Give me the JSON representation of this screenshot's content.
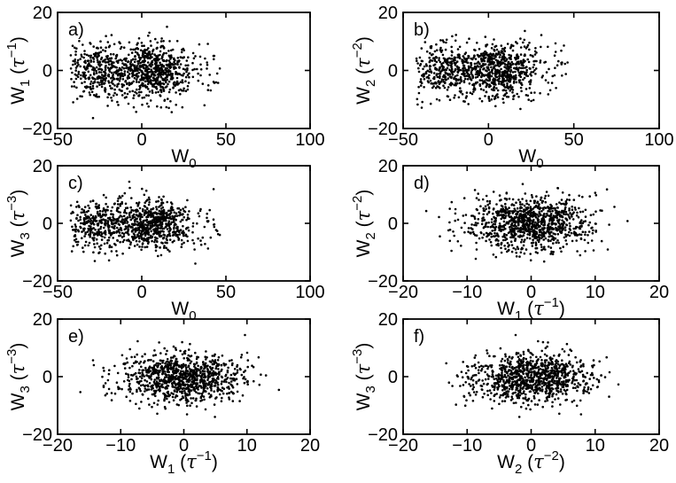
{
  "figure": {
    "background": "#ffffff",
    "axes_color": "#000000",
    "panel_letters": [
      "a)",
      "b)",
      "c)",
      "d)",
      "e)",
      "f)"
    ]
  },
  "chart_data": {
    "type": "scatter",
    "grid": false,
    "legend": null,
    "marker": {
      "style": "point",
      "color": "#000000",
      "radius_px": 1.3
    },
    "frame_color": "#000000",
    "background": "#ffffff",
    "n_points": 1000,
    "seed": 20,
    "variables": {
      "W0": {
        "dist": "mixture",
        "components": [
          {
            "weight": 0.34,
            "mean": -26,
            "std": 9.5
          },
          {
            "weight": 0.63,
            "mean": 7,
            "std": 11
          },
          {
            "weight": 0.03,
            "mean": 36,
            "std": 8
          }
        ],
        "clip": [
          -43,
          51
        ]
      },
      "W1": {
        "dist": "normal",
        "mean": -0.3,
        "std": 4.8,
        "clip": [
          -17,
          15.2
        ]
      },
      "W2": {
        "dist": "normal",
        "mean": 0.0,
        "std": 4.6,
        "clip": [
          -17.5,
          15
        ]
      },
      "W3": {
        "dist": "normal",
        "mean": -0.4,
        "std": 4.2,
        "clip": [
          -18,
          14.5
        ]
      }
    },
    "panels": [
      {
        "label": "a)",
        "x": "W0",
        "y": "W1",
        "xlim": [
          -50,
          100
        ],
        "ylim": [
          -20,
          20
        ],
        "xticks": [
          -50,
          0,
          50,
          100
        ],
        "yticks": [
          -20,
          0,
          20
        ],
        "xlabel": {
          "base": "W",
          "sub": "0"
        },
        "ylabel": {
          "base": "W",
          "sub": "1",
          "tau_exp": "−1"
        }
      },
      {
        "label": "b)",
        "x": "W0",
        "y": "W2",
        "xlim": [
          -50,
          100
        ],
        "ylim": [
          -20,
          20
        ],
        "xticks": [
          -50,
          0,
          50,
          100
        ],
        "yticks": [
          -20,
          0,
          20
        ],
        "xlabel": {
          "base": "W",
          "sub": "0"
        },
        "ylabel": {
          "base": "W",
          "sub": "2",
          "tau_exp": "−2"
        }
      },
      {
        "label": "c)",
        "x": "W0",
        "y": "W3",
        "xlim": [
          -50,
          100
        ],
        "ylim": [
          -20,
          20
        ],
        "xticks": [
          -50,
          0,
          50,
          100
        ],
        "yticks": [
          -20,
          0,
          20
        ],
        "xlabel": {
          "base": "W",
          "sub": "0"
        },
        "ylabel": {
          "base": "W",
          "sub": "3",
          "tau_exp": "−3"
        }
      },
      {
        "label": "d)",
        "x": "W1",
        "y": "W2",
        "xlim": [
          -20,
          20
        ],
        "ylim": [
          -20,
          20
        ],
        "xticks": [
          -20,
          -10,
          0,
          10,
          20
        ],
        "yticks": [
          -20,
          0,
          20
        ],
        "xlabel": {
          "base": "W",
          "sub": "1",
          "tau_exp": "−1"
        },
        "ylabel": {
          "base": "W",
          "sub": "2",
          "tau_exp": "−2"
        }
      },
      {
        "label": "e)",
        "x": "W1",
        "y": "W3",
        "xlim": [
          -20,
          20
        ],
        "ylim": [
          -20,
          20
        ],
        "xticks": [
          -20,
          -10,
          0,
          10,
          20
        ],
        "yticks": [
          -20,
          0,
          20
        ],
        "xlabel": {
          "base": "W",
          "sub": "1",
          "tau_exp": "−1"
        },
        "ylabel": {
          "base": "W",
          "sub": "3",
          "tau_exp": "−3"
        }
      },
      {
        "label": "f)",
        "x": "W2",
        "y": "W3",
        "xlim": [
          -20,
          20
        ],
        "ylim": [
          -20,
          20
        ],
        "xticks": [
          -20,
          -10,
          0,
          10,
          20
        ],
        "yticks": [
          -20,
          0,
          20
        ],
        "xlabel": {
          "base": "W",
          "sub": "2",
          "tau_exp": "−2"
        },
        "ylabel": {
          "base": "W",
          "sub": "3",
          "tau_exp": "−3"
        }
      }
    ]
  }
}
